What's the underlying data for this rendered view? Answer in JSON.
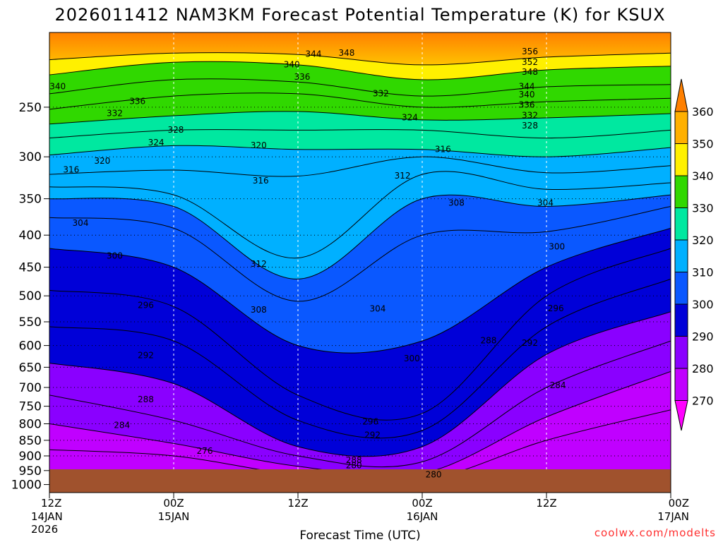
{
  "chart_data": {
    "type": "heatmap",
    "title": "2026011412 NAM3KM Forecast Potential Temperature (K) for KSUX",
    "xlabel": "Forecast Time (UTC)",
    "ylabel": "",
    "y_scale": "log-pressure",
    "ylim": [
      1030,
      190
    ],
    "y_ticks": [
      250,
      300,
      350,
      400,
      450,
      500,
      550,
      600,
      650,
      700,
      750,
      800,
      850,
      900,
      950,
      1000
    ],
    "x_hours": [
      0,
      12,
      24,
      36,
      48,
      60
    ],
    "x_ticks": [
      {
        "time": "12Z",
        "date": "14JAN",
        "year": "2026"
      },
      {
        "time": "00Z",
        "date": "15JAN",
        "year": ""
      },
      {
        "time": "12Z",
        "date": "",
        "year": ""
      },
      {
        "time": "00Z",
        "date": "16JAN",
        "year": ""
      },
      {
        "time": "12Z",
        "date": "",
        "year": ""
      },
      {
        "time": "00Z",
        "date": "17JAN",
        "year": ""
      }
    ],
    "grid": true,
    "legend": "colorbar-right",
    "colorbar": {
      "levels": [
        270,
        280,
        290,
        300,
        310,
        320,
        330,
        340,
        350,
        360
      ],
      "colors": [
        "#ff00ff",
        "#c000ff",
        "#8a00ff",
        "#0000d8",
        "#0a58ff",
        "#00b0ff",
        "#00e8a0",
        "#30d800",
        "#fff000",
        "#ffb000",
        "#ff8000"
      ]
    },
    "isentropes": [
      {
        "theta": 344,
        "hours": [
          0,
          12,
          24,
          36,
          48,
          60
        ],
        "pressure": [
          210,
          205,
          206,
          214,
          208,
          205
        ]
      },
      {
        "theta": 340,
        "hours": [
          0,
          12,
          24,
          36,
          48,
          60
        ],
        "pressure": [
          222,
          212,
          214,
          226,
          218,
          215
        ]
      },
      {
        "theta": 336,
        "hours": [
          0,
          12,
          24,
          36,
          48,
          60
        ],
        "pressure": [
          238,
          226,
          228,
          240,
          232,
          230
        ]
      },
      {
        "theta": 332,
        "hours": [
          0,
          12,
          24,
          36,
          48,
          60
        ],
        "pressure": [
          252,
          240,
          238,
          250,
          245,
          242
        ]
      },
      {
        "theta": 328,
        "hours": [
          0,
          12,
          24,
          36,
          48,
          60
        ],
        "pressure": [
          266,
          258,
          254,
          262,
          260,
          256
        ]
      },
      {
        "theta": 324,
        "hours": [
          0,
          12,
          24,
          36,
          48,
          60
        ],
        "pressure": [
          280,
          272,
          272,
          272,
          280,
          272
        ]
      },
      {
        "theta": 320,
        "hours": [
          0,
          12,
          24,
          36,
          48,
          60
        ],
        "pressure": [
          298,
          288,
          292,
          292,
          300,
          290
        ]
      },
      {
        "theta": 316,
        "hours": [
          0,
          12,
          24,
          36,
          48,
          60
        ],
        "pressure": [
          320,
          315,
          322,
          300,
          318,
          310
        ]
      },
      {
        "theta": 312,
        "hours": [
          0,
          12,
          24,
          36,
          48,
          60
        ],
        "pressure": [
          335,
          345,
          435,
          320,
          338,
          330
        ]
      },
      {
        "theta": 308,
        "hours": [
          0,
          12,
          24,
          36,
          48,
          60
        ],
        "pressure": [
          350,
          360,
          470,
          350,
          360,
          345
        ]
      },
      {
        "theta": 304,
        "hours": [
          0,
          12,
          24,
          36,
          48,
          60
        ],
        "pressure": [
          375,
          390,
          510,
          400,
          395,
          360
        ]
      },
      {
        "theta": 300,
        "hours": [
          0,
          12,
          24,
          36,
          48,
          60
        ],
        "pressure": [
          420,
          450,
          600,
          590,
          450,
          390
        ]
      },
      {
        "theta": 296,
        "hours": [
          0,
          12,
          24,
          36,
          48,
          60
        ],
        "pressure": [
          490,
          520,
          720,
          770,
          500,
          420
        ]
      },
      {
        "theta": 292,
        "hours": [
          0,
          12,
          24,
          36,
          48,
          60
        ],
        "pressure": [
          560,
          590,
          790,
          820,
          560,
          470
        ]
      },
      {
        "theta": 288,
        "hours": [
          0,
          12,
          24,
          36,
          48,
          60
        ],
        "pressure": [
          640,
          690,
          870,
          870,
          620,
          530
        ]
      },
      {
        "theta": 284,
        "hours": [
          0,
          12,
          24,
          36,
          48,
          60
        ],
        "pressure": [
          720,
          790,
          900,
          920,
          700,
          590
        ]
      },
      {
        "theta": 280,
        "hours": [
          0,
          12,
          24,
          36,
          48,
          60
        ],
        "pressure": [
          800,
          860,
          935,
          960,
          780,
          660
        ]
      },
      {
        "theta": 276,
        "hours": [
          0,
          12,
          24,
          36,
          48,
          60
        ],
        "pressure": [
          880,
          900,
          965,
          985,
          850,
          760
        ]
      }
    ],
    "contour_labels": [
      {
        "text": "344",
        "hour": 25.5,
        "pressure": 206
      },
      {
        "text": "348",
        "hour": 28.7,
        "pressure": 205
      },
      {
        "text": "340",
        "hour": 23.4,
        "pressure": 214
      },
      {
        "text": "336",
        "hour": 24.4,
        "pressure": 224
      },
      {
        "text": "340",
        "hour": 0.8,
        "pressure": 232
      },
      {
        "text": "336",
        "hour": 8.5,
        "pressure": 245
      },
      {
        "text": "332",
        "hour": 6.3,
        "pressure": 256
      },
      {
        "text": "332",
        "hour": 32.0,
        "pressure": 238
      },
      {
        "text": "356",
        "hour": 46.4,
        "pressure": 204
      },
      {
        "text": "352",
        "hour": 46.4,
        "pressure": 212
      },
      {
        "text": "348",
        "hour": 46.4,
        "pressure": 220
      },
      {
        "text": "344",
        "hour": 46.1,
        "pressure": 232
      },
      {
        "text": "340",
        "hour": 46.1,
        "pressure": 239
      },
      {
        "text": "336",
        "hour": 46.1,
        "pressure": 248
      },
      {
        "text": "332",
        "hour": 46.4,
        "pressure": 258
      },
      {
        "text": "328",
        "hour": 46.4,
        "pressure": 268
      },
      {
        "text": "324",
        "hour": 34.8,
        "pressure": 260
      },
      {
        "text": "328",
        "hour": 12.2,
        "pressure": 272
      },
      {
        "text": "324",
        "hour": 10.3,
        "pressure": 285
      },
      {
        "text": "320",
        "hour": 20.2,
        "pressure": 288
      },
      {
        "text": "316",
        "hour": 38.0,
        "pressure": 292
      },
      {
        "text": "320",
        "hour": 5.1,
        "pressure": 305
      },
      {
        "text": "316",
        "hour": 2.1,
        "pressure": 315
      },
      {
        "text": "316",
        "hour": 20.4,
        "pressure": 328
      },
      {
        "text": "312",
        "hour": 34.1,
        "pressure": 322
      },
      {
        "text": "308",
        "hour": 39.3,
        "pressure": 356
      },
      {
        "text": "304",
        "hour": 47.9,
        "pressure": 356
      },
      {
        "text": "304",
        "hour": 3.0,
        "pressure": 383
      },
      {
        "text": "300",
        "hour": 49.0,
        "pressure": 418
      },
      {
        "text": "300",
        "hour": 6.3,
        "pressure": 432
      },
      {
        "text": "312",
        "hour": 20.2,
        "pressure": 445
      },
      {
        "text": "296",
        "hour": 9.3,
        "pressure": 518
      },
      {
        "text": "296",
        "hour": 48.9,
        "pressure": 524
      },
      {
        "text": "308",
        "hour": 20.2,
        "pressure": 527
      },
      {
        "text": "304",
        "hour": 31.7,
        "pressure": 525
      },
      {
        "text": "288",
        "hour": 42.4,
        "pressure": 590
      },
      {
        "text": "292",
        "hour": 46.4,
        "pressure": 595
      },
      {
        "text": "292",
        "hour": 9.3,
        "pressure": 623
      },
      {
        "text": "300",
        "hour": 35.0,
        "pressure": 630
      },
      {
        "text": "284",
        "hour": 49.1,
        "pressure": 695
      },
      {
        "text": "288",
        "hour": 9.3,
        "pressure": 732
      },
      {
        "text": "296",
        "hour": 31.0,
        "pressure": 795
      },
      {
        "text": "284",
        "hour": 7.0,
        "pressure": 805
      },
      {
        "text": "292",
        "hour": 31.2,
        "pressure": 835
      },
      {
        "text": "276",
        "hour": 15.0,
        "pressure": 885
      },
      {
        "text": "288",
        "hour": 29.4,
        "pressure": 915
      },
      {
        "text": "280",
        "hour": 29.4,
        "pressure": 933
      },
      {
        "text": "280",
        "hour": 37.1,
        "pressure": 965
      }
    ]
  },
  "footer": {
    "credit": "coolwx.com/modelts"
  }
}
